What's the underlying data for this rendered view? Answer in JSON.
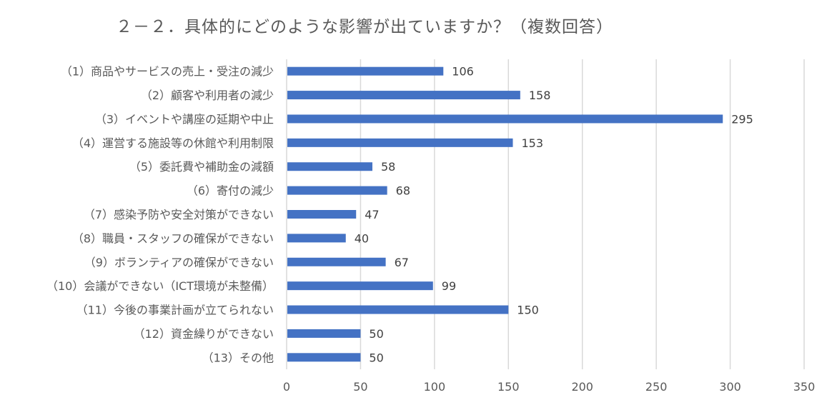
{
  "chart_data": {
    "type": "bar",
    "orientation": "horizontal",
    "title": "２－２．具体的にどのような影響が出ていますか？（複数回答）",
    "categories": [
      "（1）商品やサービスの売上・受注の減少",
      "（2）顧客や利用者の減少",
      "（3）イベントや講座の延期や中止",
      "（4）運営する施設等の休館や利用制限",
      "（5）委託費や補助金の減額",
      "（6）寄付の減少",
      "（7）感染予防や安全対策ができない",
      "（8）職員・スタッフの確保ができない",
      "（9）ボランティアの確保ができない",
      "（10）会議ができない（ICT環境が未整備）",
      "（11）今後の事業計画が立てられない",
      "（12）資金繰りができない",
      "（13）その他"
    ],
    "values": [
      106,
      158,
      295,
      153,
      58,
      68,
      47,
      40,
      67,
      99,
      150,
      50,
      50
    ],
    "xticks": [
      0,
      50,
      100,
      150,
      200,
      250,
      300,
      350
    ],
    "xlim": [
      0,
      350
    ],
    "xlabel": "",
    "ylabel": "",
    "grid": "vertical",
    "legend": "none",
    "bar_color": "#4472C4",
    "grid_color": "#D9D9D9"
  }
}
